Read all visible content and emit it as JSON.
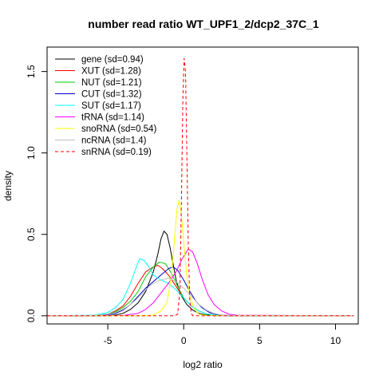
{
  "chart_data": {
    "type": "line",
    "title": "number read ratio WT_UPF1_2/dcp2_37C_1",
    "xlabel": "log2 ratio",
    "ylabel": "density",
    "xlim": [
      -9,
      11.5
    ],
    "ylim": [
      -0.05,
      1.65
    ],
    "x_ticks": [
      -5,
      0,
      5,
      10
    ],
    "x_tick_labels": [
      "-5",
      "0",
      "5",
      "10"
    ],
    "y_ticks": [
      0.0,
      0.5,
      1.0,
      1.5
    ],
    "y_tick_labels": [
      "0.0",
      "0.5",
      "1.0",
      "1.5"
    ],
    "grid": false,
    "legend_position": "top-left",
    "series": [
      {
        "name": "gene (sd=0.94)",
        "color": "#000000",
        "dash": false,
        "points": [
          [
            -9,
            0
          ],
          [
            -5,
            0.0
          ],
          [
            -4.5,
            0.005
          ],
          [
            -4,
            0.015
          ],
          [
            -3.5,
            0.04
          ],
          [
            -3,
            0.08
          ],
          [
            -2.5,
            0.15
          ],
          [
            -2,
            0.27
          ],
          [
            -1.7,
            0.38
          ],
          [
            -1.5,
            0.47
          ],
          [
            -1.3,
            0.52
          ],
          [
            -1.1,
            0.5
          ],
          [
            -0.9,
            0.42
          ],
          [
            -0.7,
            0.32
          ],
          [
            -0.5,
            0.22
          ],
          [
            -0.2,
            0.13
          ],
          [
            0.2,
            0.07
          ],
          [
            0.6,
            0.035
          ],
          [
            1,
            0.015
          ],
          [
            1.5,
            0.005
          ],
          [
            2,
            0.001
          ],
          [
            11.2,
            0
          ]
        ]
      },
      {
        "name": "XUT (sd=1.28)",
        "color": "#ff0000",
        "dash": false,
        "points": [
          [
            -9,
            0
          ],
          [
            -6,
            0.001
          ],
          [
            -5,
            0.01
          ],
          [
            -4.5,
            0.03
          ],
          [
            -4,
            0.06
          ],
          [
            -3.5,
            0.12
          ],
          [
            -3,
            0.2
          ],
          [
            -2.5,
            0.27
          ],
          [
            -2,
            0.3
          ],
          [
            -1.7,
            0.31
          ],
          [
            -1.4,
            0.29
          ],
          [
            -1,
            0.25
          ],
          [
            -0.5,
            0.18
          ],
          [
            0,
            0.11
          ],
          [
            0.5,
            0.06
          ],
          [
            1,
            0.03
          ],
          [
            1.5,
            0.012
          ],
          [
            2,
            0.004
          ],
          [
            3,
            0.001
          ],
          [
            11.2,
            0
          ]
        ]
      },
      {
        "name": "NUT (sd=1.21)",
        "color": "#00cc00",
        "dash": false,
        "points": [
          [
            -9,
            0
          ],
          [
            -6,
            0.001
          ],
          [
            -5,
            0.01
          ],
          [
            -4.5,
            0.025
          ],
          [
            -4,
            0.05
          ],
          [
            -3.5,
            0.09
          ],
          [
            -3,
            0.15
          ],
          [
            -2.5,
            0.24
          ],
          [
            -2,
            0.3
          ],
          [
            -1.6,
            0.33
          ],
          [
            -1.2,
            0.32
          ],
          [
            -0.8,
            0.26
          ],
          [
            -0.4,
            0.18
          ],
          [
            0,
            0.11
          ],
          [
            0.5,
            0.06
          ],
          [
            1,
            0.03
          ],
          [
            1.5,
            0.012
          ],
          [
            2,
            0.004
          ],
          [
            3,
            0.001
          ],
          [
            11.2,
            0
          ]
        ]
      },
      {
        "name": "CUT (sd=1.32)",
        "color": "#0000cc",
        "dash": false,
        "points": [
          [
            -9,
            0
          ],
          [
            -6,
            0.001
          ],
          [
            -5,
            0.006
          ],
          [
            -4.5,
            0.015
          ],
          [
            -4,
            0.035
          ],
          [
            -3.5,
            0.07
          ],
          [
            -3,
            0.12
          ],
          [
            -2.5,
            0.17
          ],
          [
            -2,
            0.21
          ],
          [
            -1.5,
            0.25
          ],
          [
            -1,
            0.29
          ],
          [
            -0.7,
            0.3
          ],
          [
            -0.4,
            0.28
          ],
          [
            0,
            0.22
          ],
          [
            0.4,
            0.15
          ],
          [
            0.8,
            0.09
          ],
          [
            1.2,
            0.05
          ],
          [
            1.7,
            0.02
          ],
          [
            2.2,
            0.007
          ],
          [
            3,
            0.002
          ],
          [
            11.2,
            0
          ]
        ]
      },
      {
        "name": "SUT (sd=1.17)",
        "color": "#00ffff",
        "dash": false,
        "points": [
          [
            -9,
            0
          ],
          [
            -6,
            0.003
          ],
          [
            -5,
            0.02
          ],
          [
            -4.5,
            0.05
          ],
          [
            -4,
            0.1
          ],
          [
            -3.5,
            0.2
          ],
          [
            -3.2,
            0.28
          ],
          [
            -2.9,
            0.35
          ],
          [
            -2.6,
            0.34
          ],
          [
            -2.3,
            0.3
          ],
          [
            -2,
            0.25
          ],
          [
            -1.5,
            0.22
          ],
          [
            -1,
            0.2
          ],
          [
            -0.5,
            0.16
          ],
          [
            0,
            0.11
          ],
          [
            0.5,
            0.06
          ],
          [
            1,
            0.03
          ],
          [
            1.5,
            0.012
          ],
          [
            2,
            0.004
          ],
          [
            3,
            0.001
          ],
          [
            11.2,
            0
          ]
        ]
      },
      {
        "name": "tRNA (sd=1.14)",
        "color": "#ff00ff",
        "dash": false,
        "points": [
          [
            -9,
            0
          ],
          [
            -4,
            0.002
          ],
          [
            -3,
            0.015
          ],
          [
            -2.5,
            0.04
          ],
          [
            -2,
            0.08
          ],
          [
            -1.5,
            0.14
          ],
          [
            -1,
            0.2
          ],
          [
            -0.5,
            0.27
          ],
          [
            -0.1,
            0.35
          ],
          [
            0.3,
            0.41
          ],
          [
            0.6,
            0.39
          ],
          [
            0.9,
            0.32
          ],
          [
            1.2,
            0.23
          ],
          [
            1.6,
            0.13
          ],
          [
            2,
            0.07
          ],
          [
            2.5,
            0.03
          ],
          [
            3,
            0.01
          ],
          [
            3.5,
            0.003
          ],
          [
            11.2,
            0
          ]
        ]
      },
      {
        "name": "snoRNA (sd=0.54)",
        "color": "#ffff00",
        "dash": false,
        "points": [
          [
            -9,
            0
          ],
          [
            -2.5,
            0
          ],
          [
            -2,
            0.005
          ],
          [
            -1.5,
            0.03
          ],
          [
            -1.1,
            0.08
          ],
          [
            -0.8,
            0.25
          ],
          [
            -0.6,
            0.48
          ],
          [
            -0.45,
            0.65
          ],
          [
            -0.3,
            0.71
          ],
          [
            -0.15,
            0.62
          ],
          [
            0,
            0.45
          ],
          [
            0.2,
            0.25
          ],
          [
            0.4,
            0.12
          ],
          [
            0.7,
            0.04
          ],
          [
            1,
            0.01
          ],
          [
            1.5,
            0.002
          ],
          [
            11.2,
            0
          ]
        ]
      },
      {
        "name": "ncRNA (sd=1.4)",
        "color": "#c0c0c0",
        "dash": false,
        "points": [
          [
            -9,
            0
          ],
          [
            -6,
            0.002
          ],
          [
            -5,
            0.01
          ],
          [
            -4.5,
            0.02
          ],
          [
            -4,
            0.04
          ],
          [
            -3.5,
            0.07
          ],
          [
            -3,
            0.11
          ],
          [
            -2.5,
            0.16
          ],
          [
            -2,
            0.2
          ],
          [
            -1.5,
            0.22
          ],
          [
            -1,
            0.23
          ],
          [
            -0.5,
            0.21
          ],
          [
            0,
            0.17
          ],
          [
            0.5,
            0.12
          ],
          [
            1,
            0.07
          ],
          [
            1.5,
            0.035
          ],
          [
            2,
            0.015
          ],
          [
            2.5,
            0.005
          ],
          [
            3,
            0.001
          ],
          [
            11.2,
            0
          ]
        ]
      },
      {
        "name": "snRNA (sd=0.19)",
        "color": "#ff0000",
        "dash": true,
        "points": [
          [
            -9,
            0
          ],
          [
            -0.6,
            0
          ],
          [
            -0.4,
            0.01
          ],
          [
            -0.25,
            0.15
          ],
          [
            -0.15,
            0.7
          ],
          [
            -0.05,
            1.35
          ],
          [
            0.03,
            1.58
          ],
          [
            0.12,
            1.5
          ],
          [
            0.2,
            1.05
          ],
          [
            0.3,
            0.45
          ],
          [
            0.4,
            0.1
          ],
          [
            0.5,
            0.015
          ],
          [
            0.6,
            0
          ],
          [
            11.2,
            0
          ]
        ]
      }
    ]
  }
}
